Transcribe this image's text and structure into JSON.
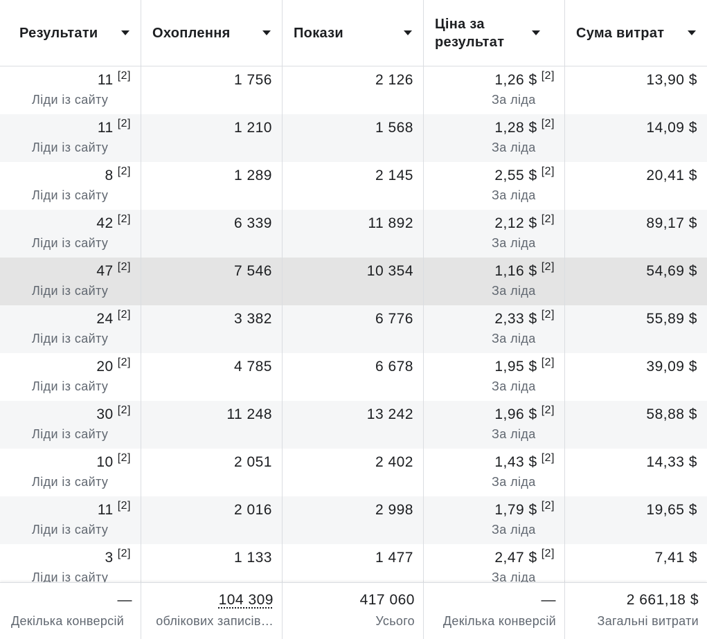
{
  "headers": [
    {
      "label": "Результати"
    },
    {
      "label": "Охоплення"
    },
    {
      "label": "Покази"
    },
    {
      "label": "Ціна за результат"
    },
    {
      "label": "Сума витрат"
    }
  ],
  "rows": [
    {
      "results": "11",
      "results_note": "[2]",
      "results_label": "Ліди із сайту",
      "reach": "1 756",
      "impressions": "2 126",
      "cost": "1,26 $",
      "cost_note": "[2]",
      "cost_label": "За ліда",
      "spend": "13,90 $"
    },
    {
      "results": "11",
      "results_note": "[2]",
      "results_label": "Ліди із сайту",
      "reach": "1 210",
      "impressions": "1 568",
      "cost": "1,28 $",
      "cost_note": "[2]",
      "cost_label": "За ліда",
      "spend": "14,09 $"
    },
    {
      "results": "8",
      "results_note": "[2]",
      "results_label": "Ліди із сайту",
      "reach": "1 289",
      "impressions": "2 145",
      "cost": "2,55 $",
      "cost_note": "[2]",
      "cost_label": "За ліда",
      "spend": "20,41 $"
    },
    {
      "results": "42",
      "results_note": "[2]",
      "results_label": "Ліди із сайту",
      "reach": "6 339",
      "impressions": "11 892",
      "cost": "2,12 $",
      "cost_note": "[2]",
      "cost_label": "За ліда",
      "spend": "89,17 $"
    },
    {
      "results": "47",
      "results_note": "[2]",
      "results_label": "Ліди із сайту",
      "reach": "7 546",
      "impressions": "10 354",
      "cost": "1,16 $",
      "cost_note": "[2]",
      "cost_label": "За ліда",
      "spend": "54,69 $"
    },
    {
      "results": "24",
      "results_note": "[2]",
      "results_label": "Ліди із сайту",
      "reach": "3 382",
      "impressions": "6 776",
      "cost": "2,33 $",
      "cost_note": "[2]",
      "cost_label": "За ліда",
      "spend": "55,89 $"
    },
    {
      "results": "20",
      "results_note": "[2]",
      "results_label": "Ліди із сайту",
      "reach": "4 785",
      "impressions": "6 678",
      "cost": "1,95 $",
      "cost_note": "[2]",
      "cost_label": "За ліда",
      "spend": "39,09 $"
    },
    {
      "results": "30",
      "results_note": "[2]",
      "results_label": "Ліди із сайту",
      "reach": "11 248",
      "impressions": "13 242",
      "cost": "1,96 $",
      "cost_note": "[2]",
      "cost_label": "За ліда",
      "spend": "58,88 $"
    },
    {
      "results": "10",
      "results_note": "[2]",
      "results_label": "Ліди із сайту",
      "reach": "2 051",
      "impressions": "2 402",
      "cost": "1,43 $",
      "cost_note": "[2]",
      "cost_label": "За ліда",
      "spend": "14,33 $"
    },
    {
      "results": "11",
      "results_note": "[2]",
      "results_label": "Ліди із сайту",
      "reach": "2 016",
      "impressions": "2 998",
      "cost": "1,79 $",
      "cost_note": "[2]",
      "cost_label": "За ліда",
      "spend": "19,65 $"
    },
    {
      "results": "3",
      "results_note": "[2]",
      "results_label": "Ліди із сайту",
      "reach": "1 133",
      "impressions": "1 477",
      "cost": "2,47 $",
      "cost_note": "[2]",
      "cost_label": "За ліда",
      "spend": "7,41 $"
    }
  ],
  "footer": {
    "results": "—",
    "results_label": "Декілька конверсій",
    "reach": "104 309",
    "reach_label": "облікових записів…",
    "impressions": "417 060",
    "impressions_label": "Усього",
    "cost": "—",
    "cost_label": "Декілька конверсій",
    "spend": "2 661,18 $",
    "spend_label": "Загальні витрати"
  }
}
